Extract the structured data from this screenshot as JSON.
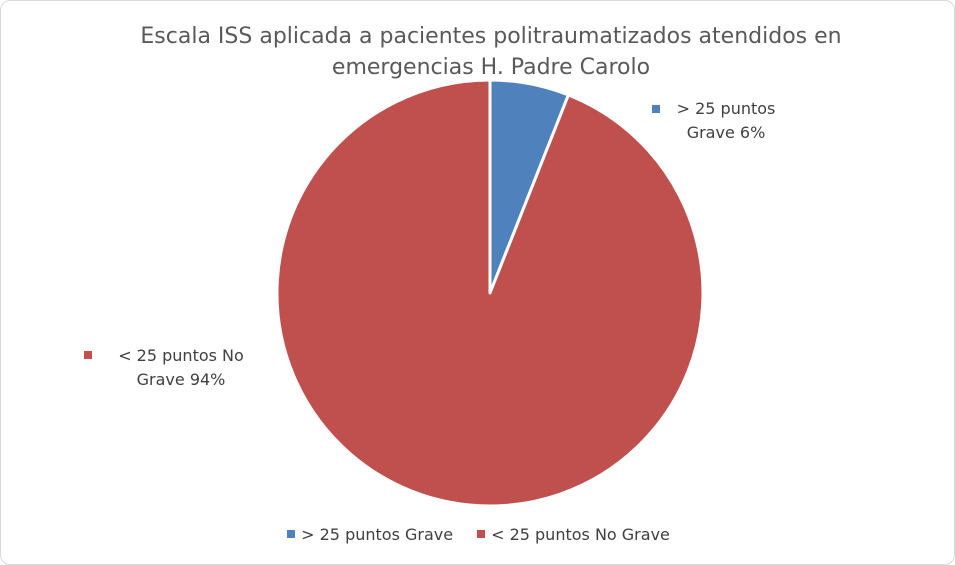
{
  "chart_data": {
    "type": "pie",
    "title": "Escala ISS aplicada a pacientes politraumatizados atendidos en emergencias H. Padre Carolo",
    "categories": [
      "> 25 puntos Grave",
      "< 25 puntos No Grave"
    ],
    "values": [
      6,
      94
    ],
    "value_labels": [
      "6%",
      "94%"
    ],
    "colors": [
      "#4f81bd",
      "#c0504d"
    ],
    "legend": "bottom"
  }
}
